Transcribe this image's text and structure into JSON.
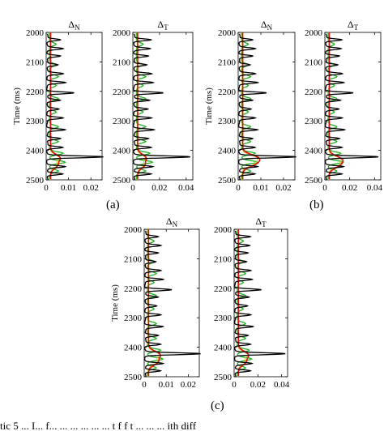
{
  "figure": {
    "caption_fragment": "tic 5 ... I... f... ... ... ... ... ... t f f t ... ... ... ith diff",
    "panel_labels": [
      "(a)",
      "(b)",
      "(c)"
    ]
  },
  "colors": {
    "true": "#000000",
    "green": "#1fb01f",
    "red": "#e01010",
    "yellow": "#d8c820"
  },
  "chart_data": [
    {
      "panel": "(a)",
      "type": "line",
      "title": "Δ_N",
      "xlabel": "",
      "ylabel": "Time (ms)",
      "xlim": [
        0,
        0.025
      ],
      "xticks": [
        "0",
        "0.01",
        "0.02"
      ],
      "ylim": [
        2000,
        2500
      ],
      "yticks": [
        "2000",
        "2100",
        "2200",
        "2300",
        "2400",
        "2500"
      ],
      "spikes": [
        [
          2025,
          0.006
        ],
        [
          2055,
          0.007
        ],
        [
          2080,
          0.006
        ],
        [
          2110,
          0.005
        ],
        [
          2140,
          0.007
        ],
        [
          2170,
          0.008
        ],
        [
          2205,
          0.012
        ],
        [
          2230,
          0.006
        ],
        [
          2260,
          0.005
        ],
        [
          2290,
          0.007
        ],
        [
          2330,
          0.008
        ],
        [
          2360,
          0.006
        ],
        [
          2390,
          0.007
        ],
        [
          2422,
          0.025
        ],
        [
          2455,
          0.008
        ],
        [
          2480,
          0.007
        ]
      ],
      "green_bumps": [
        [
          2040,
          0.003
        ],
        [
          2110,
          0.003
        ],
        [
          2150,
          0.004
        ],
        [
          2180,
          0.003
        ],
        [
          2225,
          0.004
        ],
        [
          2270,
          0.003
        ],
        [
          2320,
          0.004
        ],
        [
          2370,
          0.004
        ],
        [
          2410,
          0.006
        ],
        [
          2440,
          0.007
        ],
        [
          2470,
          0.004
        ]
      ],
      "red_bumps": [
        [
          2425,
          0.004
        ],
        [
          2450,
          0.003
        ]
      ]
    },
    {
      "panel": "(a)",
      "type": "line",
      "title": "Δ_T",
      "xlabel": "",
      "ylabel": "",
      "xlim": [
        0,
        0.045
      ],
      "xticks": [
        "0",
        "0.02",
        "0.04"
      ],
      "ylim": [
        2000,
        2500
      ],
      "yticks": [
        "2000",
        "2100",
        "2200",
        "2300",
        "2400",
        "2500"
      ],
      "spikes": [
        [
          2025,
          0.013
        ],
        [
          2055,
          0.012
        ],
        [
          2080,
          0.011
        ],
        [
          2110,
          0.01
        ],
        [
          2140,
          0.013
        ],
        [
          2170,
          0.014
        ],
        [
          2205,
          0.022
        ],
        [
          2230,
          0.012
        ],
        [
          2260,
          0.01
        ],
        [
          2290,
          0.013
        ],
        [
          2330,
          0.015
        ],
        [
          2360,
          0.011
        ],
        [
          2390,
          0.013
        ],
        [
          2422,
          0.042
        ],
        [
          2455,
          0.014
        ],
        [
          2480,
          0.013
        ]
      ],
      "green_bumps": [
        [
          2040,
          0.005
        ],
        [
          2110,
          0.005
        ],
        [
          2150,
          0.007
        ],
        [
          2180,
          0.005
        ],
        [
          2225,
          0.007
        ],
        [
          2270,
          0.005
        ],
        [
          2320,
          0.007
        ],
        [
          2370,
          0.007
        ],
        [
          2410,
          0.01
        ],
        [
          2440,
          0.012
        ],
        [
          2470,
          0.007
        ]
      ],
      "red_bumps": [
        [
          2425,
          0.006
        ],
        [
          2450,
          0.005
        ]
      ]
    },
    {
      "panel": "(b)",
      "type": "line",
      "title": "Δ_N",
      "xlabel": "",
      "ylabel": "Time (ms)",
      "xlim": [
        0,
        0.025
      ],
      "xticks": [
        "0",
        "0.01",
        "0.02"
      ],
      "ylim": [
        2000,
        2500
      ],
      "yticks": [
        "2000",
        "2100",
        "2200",
        "2300",
        "2400",
        "2500"
      ],
      "spikes": [
        [
          2025,
          0.006
        ],
        [
          2055,
          0.007
        ],
        [
          2080,
          0.006
        ],
        [
          2110,
          0.005
        ],
        [
          2140,
          0.007
        ],
        [
          2170,
          0.008
        ],
        [
          2205,
          0.012
        ],
        [
          2230,
          0.006
        ],
        [
          2260,
          0.005
        ],
        [
          2290,
          0.007
        ],
        [
          2330,
          0.008
        ],
        [
          2360,
          0.006
        ],
        [
          2390,
          0.007
        ],
        [
          2422,
          0.025
        ],
        [
          2455,
          0.008
        ],
        [
          2480,
          0.007
        ]
      ],
      "green_bumps": [
        [
          2040,
          0.003
        ],
        [
          2110,
          0.003
        ],
        [
          2150,
          0.004
        ],
        [
          2180,
          0.003
        ],
        [
          2225,
          0.004
        ],
        [
          2270,
          0.003
        ],
        [
          2320,
          0.004
        ],
        [
          2370,
          0.004
        ],
        [
          2410,
          0.006
        ],
        [
          2440,
          0.007
        ],
        [
          2470,
          0.004
        ]
      ],
      "red_bumps": [
        [
          2425,
          0.006
        ],
        [
          2445,
          0.005
        ]
      ]
    },
    {
      "panel": "(b)",
      "type": "line",
      "title": "Δ_T",
      "xlabel": "",
      "ylabel": "",
      "xlim": [
        0,
        0.045
      ],
      "xticks": [
        "0",
        "0.02",
        "0.04"
      ],
      "ylim": [
        2000,
        2500
      ],
      "yticks": [
        "2000",
        "2100",
        "2200",
        "2300",
        "2400",
        "2500"
      ],
      "spikes": [
        [
          2025,
          0.013
        ],
        [
          2055,
          0.012
        ],
        [
          2080,
          0.011
        ],
        [
          2110,
          0.01
        ],
        [
          2140,
          0.013
        ],
        [
          2170,
          0.014
        ],
        [
          2205,
          0.022
        ],
        [
          2230,
          0.012
        ],
        [
          2260,
          0.01
        ],
        [
          2290,
          0.013
        ],
        [
          2330,
          0.015
        ],
        [
          2360,
          0.011
        ],
        [
          2390,
          0.013
        ],
        [
          2422,
          0.042
        ],
        [
          2455,
          0.014
        ],
        [
          2480,
          0.013
        ]
      ],
      "green_bumps": [
        [
          2040,
          0.005
        ],
        [
          2110,
          0.005
        ],
        [
          2150,
          0.007
        ],
        [
          2180,
          0.005
        ],
        [
          2225,
          0.007
        ],
        [
          2270,
          0.005
        ],
        [
          2320,
          0.007
        ],
        [
          2370,
          0.007
        ],
        [
          2410,
          0.01
        ],
        [
          2440,
          0.012
        ],
        [
          2470,
          0.007
        ]
      ],
      "red_bumps": [
        [
          2430,
          0.009
        ],
        [
          2450,
          0.007
        ]
      ]
    },
    {
      "panel": "(c)",
      "type": "line",
      "title": "Δ_N",
      "xlabel": "",
      "ylabel": "Time (ms)",
      "xlim": [
        0,
        0.025
      ],
      "xticks": [
        "0",
        "0.01",
        "0.02"
      ],
      "ylim": [
        2000,
        2500
      ],
      "yticks": [
        "2000",
        "2100",
        "2200",
        "2300",
        "2400",
        "2500"
      ],
      "spikes": [
        [
          2025,
          0.006
        ],
        [
          2055,
          0.007
        ],
        [
          2080,
          0.006
        ],
        [
          2110,
          0.005
        ],
        [
          2140,
          0.007
        ],
        [
          2170,
          0.008
        ],
        [
          2205,
          0.012
        ],
        [
          2230,
          0.006
        ],
        [
          2260,
          0.005
        ],
        [
          2290,
          0.007
        ],
        [
          2330,
          0.008
        ],
        [
          2360,
          0.006
        ],
        [
          2390,
          0.007
        ],
        [
          2422,
          0.025
        ],
        [
          2455,
          0.008
        ],
        [
          2480,
          0.007
        ]
      ],
      "green_bumps": [
        [
          2040,
          0.003
        ],
        [
          2110,
          0.003
        ],
        [
          2150,
          0.004
        ],
        [
          2180,
          0.003
        ],
        [
          2225,
          0.004
        ],
        [
          2270,
          0.003
        ],
        [
          2320,
          0.004
        ],
        [
          2370,
          0.004
        ],
        [
          2410,
          0.006
        ],
        [
          2440,
          0.007
        ],
        [
          2470,
          0.004
        ]
      ],
      "red_bumps": [
        [
          2425,
          0.005
        ],
        [
          2450,
          0.004
        ]
      ]
    },
    {
      "panel": "(c)",
      "type": "line",
      "title": "Δ_T",
      "xlabel": "",
      "ylabel": "",
      "xlim": [
        0,
        0.045
      ],
      "xticks": [
        "0",
        "0.02",
        "0.04"
      ],
      "ylim": [
        2000,
        2500
      ],
      "yticks": [
        "2000",
        "2100",
        "2200",
        "2300",
        "2400",
        "2500"
      ],
      "spikes": [
        [
          2025,
          0.013
        ],
        [
          2055,
          0.012
        ],
        [
          2080,
          0.011
        ],
        [
          2110,
          0.01
        ],
        [
          2140,
          0.013
        ],
        [
          2170,
          0.014
        ],
        [
          2205,
          0.022
        ],
        [
          2230,
          0.012
        ],
        [
          2260,
          0.01
        ],
        [
          2290,
          0.013
        ],
        [
          2330,
          0.015
        ],
        [
          2360,
          0.011
        ],
        [
          2390,
          0.013
        ],
        [
          2422,
          0.042
        ],
        [
          2455,
          0.014
        ],
        [
          2480,
          0.013
        ]
      ],
      "green_bumps": [
        [
          2040,
          0.005
        ],
        [
          2110,
          0.005
        ],
        [
          2150,
          0.007
        ],
        [
          2180,
          0.005
        ],
        [
          2225,
          0.007
        ],
        [
          2270,
          0.005
        ],
        [
          2320,
          0.007
        ],
        [
          2370,
          0.007
        ],
        [
          2410,
          0.01
        ],
        [
          2440,
          0.012
        ],
        [
          2470,
          0.007
        ]
      ],
      "red_bumps": [
        [
          2425,
          0.008
        ],
        [
          2450,
          0.006
        ]
      ]
    }
  ]
}
